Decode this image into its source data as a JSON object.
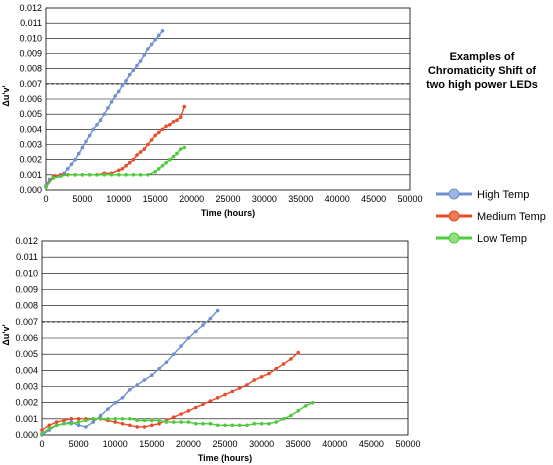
{
  "annotation": {
    "lines": [
      "Examples of",
      "Chromaticity Shift of",
      "two high power LEDs"
    ]
  },
  "legend": [
    {
      "label": "High Temp",
      "color": "#6f8fd0",
      "marker": "#9cb5e3"
    },
    {
      "label": "Medium Temp",
      "color": "#e74c2a",
      "marker": "#f07a55"
    },
    {
      "label": "Low Temp",
      "color": "#4ecb3c",
      "marker": "#8fe07f"
    }
  ],
  "chart_data": [
    {
      "type": "line",
      "xlabel": "Time (hours)",
      "ylabel": "Δu'v'",
      "xlim": [
        0,
        50000
      ],
      "ylim": [
        0,
        0.012
      ],
      "x_ticks": [
        "0",
        "5000",
        "10000",
        "15000",
        "20000",
        "25000",
        "30000",
        "35000",
        "40000",
        "45000",
        "50000"
      ],
      "y_ticks": [
        "0.000",
        "0.001",
        "0.002",
        "0.003",
        "0.004",
        "0.005",
        "0.006",
        "0.007",
        "0.008",
        "0.009",
        "0.010",
        "0.011",
        "0.012"
      ],
      "grid": true,
      "threshold": 0.007,
      "series": [
        {
          "name": "High Temp",
          "color": "#6f8fd0",
          "x": [
            0,
            500,
            1000,
            1500,
            2000,
            2500,
            3000,
            3500,
            4000,
            4500,
            5000,
            5500,
            6000,
            6500,
            7000,
            7500,
            8000,
            8500,
            9000,
            9500,
            10000,
            10500,
            11000,
            11500,
            12000,
            12500,
            13000,
            13500,
            14000,
            14500,
            15000,
            15500,
            16000
          ],
          "y": [
            0.0003,
            0.0007,
            0.0008,
            0.0009,
            0.001,
            0.0011,
            0.0014,
            0.0017,
            0.002,
            0.0024,
            0.0028,
            0.0032,
            0.0036,
            0.004,
            0.0043,
            0.0046,
            0.005,
            0.0054,
            0.0058,
            0.0062,
            0.0065,
            0.0069,
            0.0072,
            0.0076,
            0.0079,
            0.0082,
            0.0085,
            0.0089,
            0.0093,
            0.0096,
            0.0099,
            0.0102,
            0.0105
          ]
        },
        {
          "name": "Medium Temp",
          "color": "#e74c2a",
          "x": [
            0,
            1000,
            2000,
            3000,
            4000,
            5000,
            6000,
            7000,
            8000,
            9000,
            10000,
            10500,
            11000,
            11500,
            12000,
            12500,
            13000,
            13500,
            14000,
            14500,
            15000,
            15500,
            16000,
            16500,
            17000,
            17500,
            18000,
            18500,
            19000
          ],
          "y": [
            0.0002,
            0.0009,
            0.001,
            0.001,
            0.001,
            0.001,
            0.001,
            0.001,
            0.0011,
            0.0011,
            0.0013,
            0.0014,
            0.0016,
            0.0018,
            0.002,
            0.0023,
            0.0025,
            0.0027,
            0.003,
            0.0033,
            0.0036,
            0.0038,
            0.004,
            0.0042,
            0.0043,
            0.0045,
            0.0046,
            0.0048,
            0.0055
          ]
        },
        {
          "name": "Low Temp",
          "color": "#4ecb3c",
          "x": [
            0,
            1000,
            2000,
            3000,
            4000,
            5000,
            6000,
            7000,
            8000,
            9000,
            10000,
            11000,
            12000,
            13000,
            14000,
            15000,
            15500,
            16000,
            16500,
            17000,
            17500,
            18000,
            18500,
            19000
          ],
          "y": [
            0.0002,
            0.0008,
            0.0009,
            0.001,
            0.001,
            0.001,
            0.001,
            0.001,
            0.001,
            0.001,
            0.001,
            0.001,
            0.001,
            0.001,
            0.001,
            0.0012,
            0.0014,
            0.0016,
            0.0018,
            0.002,
            0.0022,
            0.0024,
            0.0027,
            0.0028
          ]
        }
      ]
    },
    {
      "type": "line",
      "xlabel": "Time (hours)",
      "ylabel": "Δu'v'",
      "xlim": [
        0,
        50000
      ],
      "ylim": [
        0,
        0.012
      ],
      "x_ticks": [
        "0",
        "5000",
        "10000",
        "15000",
        "20000",
        "25000",
        "30000",
        "35000",
        "40000",
        "45000",
        "50000"
      ],
      "y_ticks": [
        "0.000",
        "0.001",
        "0.002",
        "0.003",
        "0.004",
        "0.005",
        "0.006",
        "0.007",
        "0.008",
        "0.009",
        "0.010",
        "0.011",
        "0.012"
      ],
      "grid": true,
      "threshold": 0.007,
      "series": [
        {
          "name": "High Temp",
          "color": "#6f8fd0",
          "x": [
            0,
            1000,
            2000,
            3000,
            4000,
            5000,
            6000,
            7000,
            8000,
            9000,
            10000,
            11000,
            12000,
            13000,
            14000,
            15000,
            16000,
            17000,
            18000,
            19000,
            20000,
            21000,
            22000,
            23000,
            24000
          ],
          "y": [
            0.0,
            0.0003,
            0.0006,
            0.0007,
            0.0008,
            0.0006,
            0.0005,
            0.0008,
            0.0012,
            0.0016,
            0.002,
            0.0023,
            0.0028,
            0.0031,
            0.0034,
            0.0037,
            0.0041,
            0.0045,
            0.005,
            0.0055,
            0.006,
            0.0064,
            0.0068,
            0.0072,
            0.0077
          ]
        },
        {
          "name": "Medium Temp",
          "color": "#e74c2a",
          "x": [
            0,
            1000,
            2000,
            3000,
            4000,
            5000,
            6000,
            7000,
            8000,
            9000,
            10000,
            11000,
            12000,
            13000,
            14000,
            15000,
            16000,
            17000,
            18000,
            19000,
            20000,
            21000,
            22000,
            23000,
            24000,
            25000,
            26000,
            27000,
            28000,
            29000,
            30000,
            31000,
            32000,
            33000,
            34000,
            35000
          ],
          "y": [
            0.0003,
            0.0006,
            0.0008,
            0.0009,
            0.001,
            0.001,
            0.001,
            0.001,
            0.001,
            0.0009,
            0.0008,
            0.0007,
            0.0006,
            0.0005,
            0.0005,
            0.0006,
            0.0007,
            0.0009,
            0.0011,
            0.0013,
            0.0015,
            0.0017,
            0.0019,
            0.0021,
            0.0023,
            0.0025,
            0.0027,
            0.0029,
            0.0031,
            0.0034,
            0.0036,
            0.0038,
            0.0041,
            0.0044,
            0.0047,
            0.0051
          ]
        },
        {
          "name": "Low Temp",
          "color": "#4ecb3c",
          "x": [
            0,
            1000,
            2000,
            3000,
            4000,
            5000,
            6000,
            7000,
            8000,
            9000,
            10000,
            11000,
            12000,
            13000,
            14000,
            15000,
            16000,
            17000,
            18000,
            19000,
            20000,
            21000,
            22000,
            23000,
            24000,
            25000,
            26000,
            27000,
            28000,
            29000,
            30000,
            31000,
            32000,
            33000,
            34000,
            35000,
            36000,
            37000
          ],
          "y": [
            0.0001,
            0.0004,
            0.0006,
            0.0007,
            0.0007,
            0.0008,
            0.0009,
            0.001,
            0.001,
            0.001,
            0.001,
            0.001,
            0.001,
            0.0009,
            0.0009,
            0.0009,
            0.0009,
            0.0008,
            0.0008,
            0.0008,
            0.0008,
            0.0007,
            0.0007,
            0.0007,
            0.0006,
            0.0006,
            0.0006,
            0.0006,
            0.0006,
            0.0007,
            0.0007,
            0.0007,
            0.0008,
            0.001,
            0.0012,
            0.0015,
            0.0018,
            0.002
          ]
        }
      ]
    }
  ]
}
